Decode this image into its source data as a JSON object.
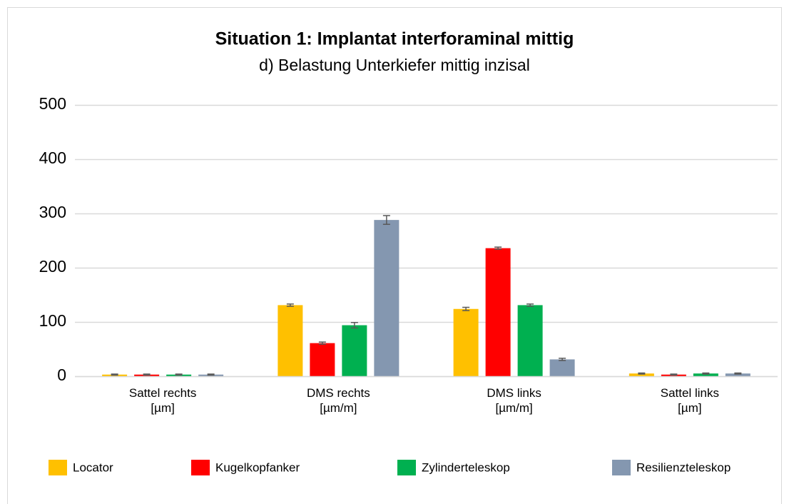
{
  "chart_data": {
    "type": "bar",
    "title": "Situation 1: Implantat interforaminal mittig",
    "subtitle": "d) Belastung Unterkiefer mittig inzisal",
    "categories": [
      "Sattel rechts\n[µm]",
      "DMS rechts\n[µm/m]",
      "DMS links\n[µm/m]",
      "Sattel links\n[µm]"
    ],
    "series": [
      {
        "name": "Locator",
        "color": "#ffc000",
        "values": [
          3,
          131,
          124,
          5
        ],
        "errors": [
          1,
          2,
          3,
          1
        ]
      },
      {
        "name": "Kugelkopfanker",
        "color": "#ff0000",
        "values": [
          3,
          61,
          236,
          3
        ],
        "errors": [
          1,
          2,
          2,
          1
        ]
      },
      {
        "name": "Zylinderteleskop",
        "color": "#00b050",
        "values": [
          3,
          94,
          131,
          5
        ],
        "errors": [
          1,
          5,
          2,
          1
        ]
      },
      {
        "name": "Resilienzteleskop",
        "color": "#8497b0",
        "values": [
          3,
          288,
          31,
          5
        ],
        "errors": [
          1,
          8,
          2,
          1
        ]
      }
    ],
    "ylim": [
      0,
      500
    ],
    "yticks": [
      0,
      100,
      200,
      300,
      400,
      500
    ],
    "grid": true,
    "legend": "bottom"
  }
}
